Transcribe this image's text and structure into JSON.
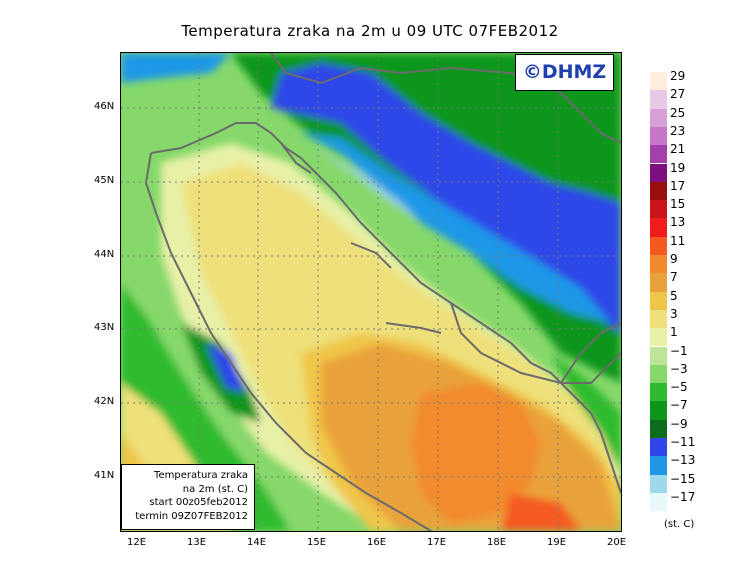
{
  "title": "Temperatura zraka na 2m u 09 UTC 07FEB2012",
  "logo_text": "©DHMZ",
  "info_box": {
    "line1": "Temperatura zraka",
    "line2": "na 2m (st. C)",
    "line3": "start 00z05feb2012",
    "line4": "termin 09Z07FEB2012"
  },
  "lat_labels": [
    "46N",
    "45N",
    "44N",
    "43N",
    "42N",
    "41N"
  ],
  "lon_labels": [
    "12E",
    "13E",
    "14E",
    "15E",
    "16E",
    "17E",
    "18E",
    "19E",
    "20E"
  ],
  "legend": {
    "levels": [
      "29",
      "27",
      "25",
      "23",
      "21",
      "19",
      "17",
      "15",
      "13",
      "11",
      "9",
      "7",
      "5",
      "3",
      "1",
      "−1",
      "−3",
      "−5",
      "−7",
      "−9",
      "−11",
      "−13",
      "−15",
      "−17"
    ],
    "units": "(st. C)",
    "colors": [
      "#fdeee0",
      "#e8c9e6",
      "#d9a0d8",
      "#c776c9",
      "#a33fa8",
      "#7e0f7e",
      "#9a0d0d",
      "#c8141a",
      "#f01b1b",
      "#f45a20",
      "#f28a2d",
      "#e9a23a",
      "#f0c64a",
      "#eee07a",
      "#e8f0a8",
      "#bde59a",
      "#86d86a",
      "#2fbb2f",
      "#0d961a",
      "#0e6d1d",
      "#2f47e8",
      "#1e98e6",
      "#9fd8ea",
      "#e6f8f8"
    ]
  },
  "colors": {
    "land_border": "#6b6b6b",
    "grid": "#777777",
    "logo_text": "#1d3fb0"
  }
}
